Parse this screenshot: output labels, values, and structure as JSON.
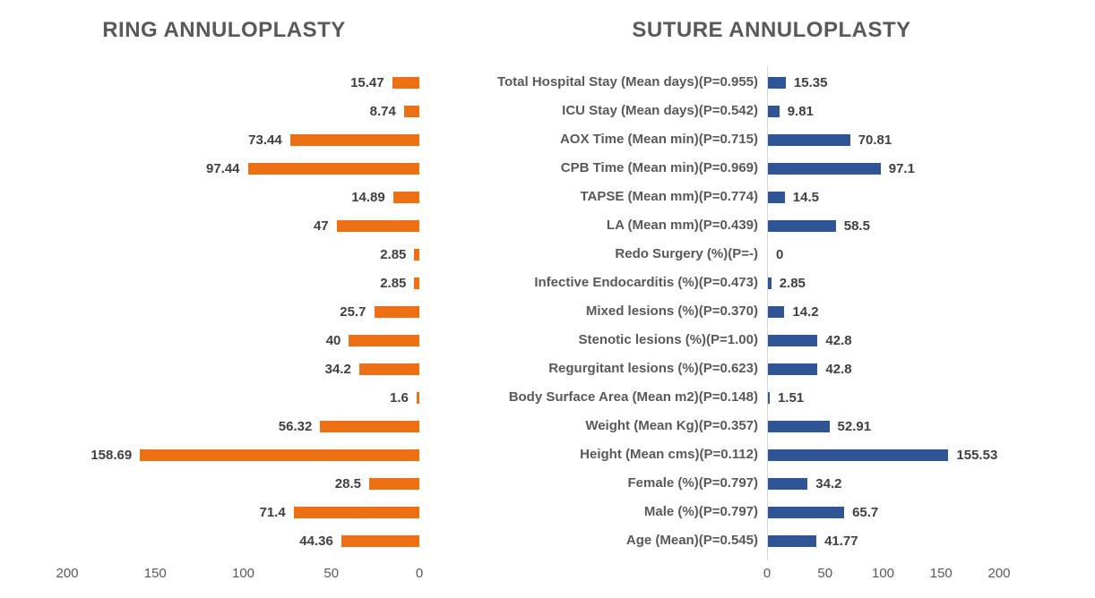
{
  "left_chart": {
    "title": "RING ANNULOPLASTY",
    "bar_color": "#ED7014"
  },
  "right_chart": {
    "title": "SUTURE ANNULOPLASTY",
    "bar_color": "#2F5597"
  },
  "chart_data": {
    "type": "bar",
    "layout": "tornado",
    "grid": "off",
    "legend": "none",
    "categories": [
      "Total Hospital Stay (Mean days)(P=0.955)",
      "ICU Stay (Mean days)(P=0.542)",
      "AOX Time (Mean min)(P=0.715)",
      "CPB Time (Mean min)(P=0.969)",
      "TAPSE (Mean mm)(P=0.774)",
      "LA (Mean mm)(P=0.439)",
      "Redo Surgery (%)(P=-)",
      "Infective Endocarditis (%)(P=0.473)",
      "Mixed lesions (%)(P=0.370)",
      "Stenotic lesions (%)(P=1.00)",
      "Regurgitant lesions (%)(P=0.623)",
      "Body Surface Area (Mean m2)(P=0.148)",
      "Weight (Mean Kg)(P=0.357)",
      "Height (Mean cms)(P=0.112)",
      "Female (%)(P=0.797)",
      "Male (%)(P=0.797)",
      "Age (Mean)(P=0.545)"
    ],
    "series": [
      {
        "name": "RING ANNULOPLASTY",
        "color": "#ED7014",
        "values": [
          "15.47",
          "8.74",
          "73.44",
          "97.44",
          "14.89",
          "47",
          "2.85",
          "2.85",
          "25.7",
          "40",
          "34.2",
          "1.6",
          "56.32",
          "158.69",
          "28.5",
          "71.4",
          "44.36"
        ]
      },
      {
        "name": "SUTURE ANNULOPLASTY",
        "color": "#2F5597",
        "values": [
          "15.35",
          "9.81",
          "70.81",
          "97.1",
          "14.5",
          "58.5",
          "0",
          "2.85",
          "14.2",
          "42.8",
          "42.8",
          "1.51",
          "52.91",
          "155.53",
          "34.2",
          "65.7",
          "41.77"
        ]
      }
    ],
    "left_axis_ticks": [
      "200",
      "150",
      "100",
      "50",
      "0"
    ],
    "right_axis_ticks": [
      "0",
      "50",
      "100",
      "150",
      "200"
    ],
    "xlim": [
      0,
      200
    ]
  }
}
